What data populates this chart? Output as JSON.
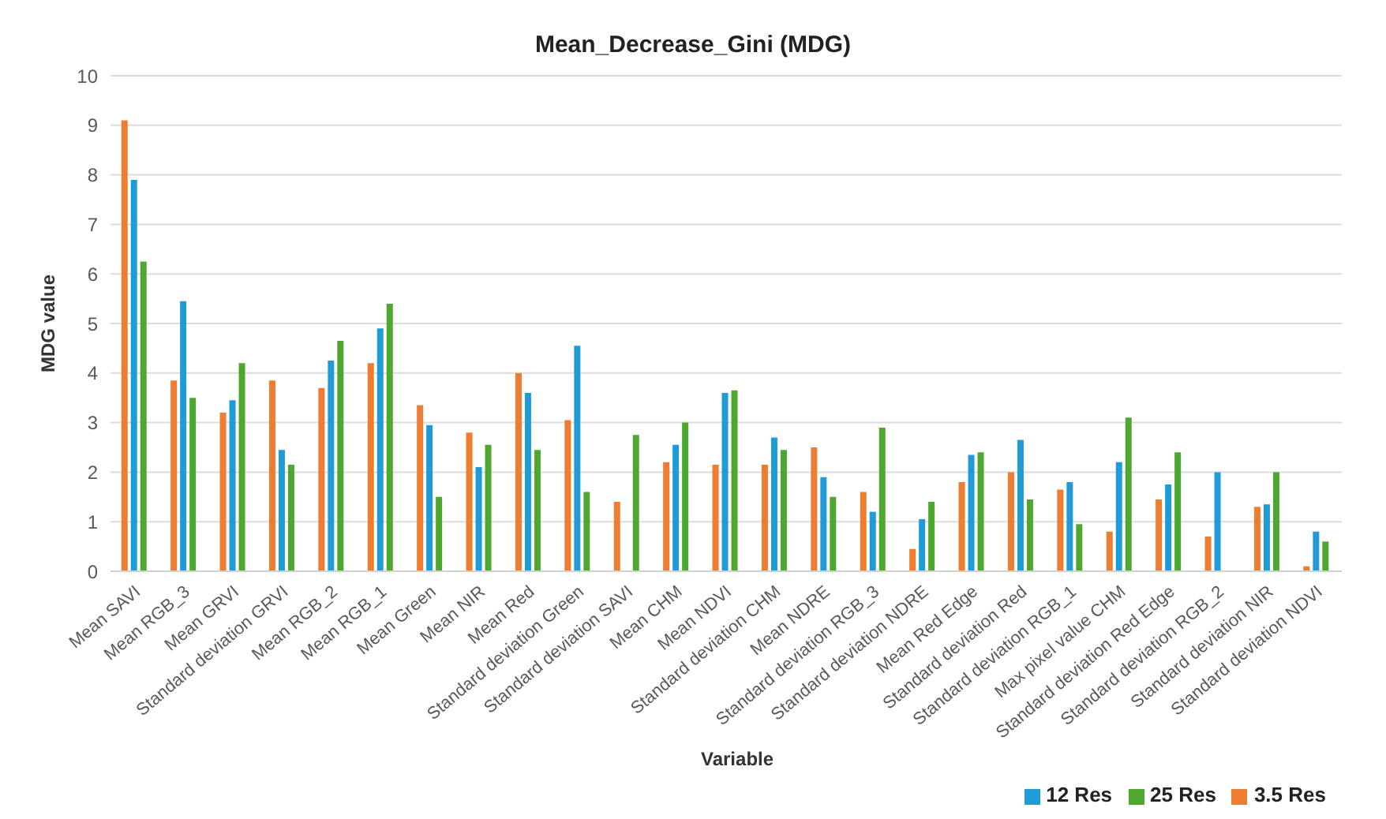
{
  "chart_data": {
    "type": "bar",
    "title": "Mean_Decrease_Gini (MDG)",
    "xlabel": "Variable",
    "ylabel": "MDG value",
    "categories": [
      "Mean SAVI",
      "Mean RGB_3",
      "Mean GRVI",
      "Standard deviation GRVI",
      "Mean RGB_2",
      "Mean RGB_1",
      "Mean Green",
      "Mean NIR",
      "Mean Red",
      "Standard deviation Green",
      "Standard deviation SAVI",
      "Mean CHM",
      "Mean NDVI",
      "Standard deviation CHM",
      "Mean NDRE",
      "Standard deviation RGB_3",
      "Standard deviation NDRE",
      "Mean Red Edge",
      "Standard deviation Red",
      "Standard deviation RGB_1",
      "Max pixel value CHM",
      "Standard deviation Red Edge",
      "Standard deviation RGB_2",
      "Standard deviation NIR",
      "Standard deviation NDVI"
    ],
    "series": [
      {
        "name": "3.5 Res",
        "color": "#ed7d31",
        "values": [
          9.1,
          3.85,
          3.2,
          3.85,
          3.7,
          4.2,
          3.35,
          2.8,
          4.0,
          3.05,
          1.4,
          2.2,
          2.15,
          2.15,
          2.5,
          1.6,
          0.45,
          1.8,
          2.0,
          1.65,
          0.8,
          1.45,
          0.7,
          1.3,
          0.1
        ]
      },
      {
        "name": "12 Res",
        "color": "#1f9bd7",
        "values": [
          7.9,
          5.45,
          3.45,
          2.45,
          4.25,
          4.9,
          2.95,
          2.1,
          3.6,
          4.55,
          null,
          2.55,
          3.6,
          2.7,
          1.9,
          1.2,
          1.05,
          2.35,
          2.65,
          1.8,
          2.2,
          1.75,
          2.0,
          1.35,
          0.8
        ]
      },
      {
        "name": "25 Res",
        "color": "#4ea72e",
        "values": [
          6.25,
          3.5,
          4.2,
          2.15,
          4.65,
          5.4,
          1.5,
          2.55,
          2.45,
          1.6,
          2.75,
          3.0,
          3.65,
          2.45,
          1.5,
          2.9,
          1.4,
          2.4,
          1.45,
          0.95,
          3.1,
          2.4,
          null,
          2.0,
          0.6
        ]
      }
    ],
    "ylim": [
      0,
      10
    ],
    "yticks": [
      0,
      1,
      2,
      3,
      4,
      5,
      6,
      7,
      8,
      9,
      10
    ],
    "grid": "y",
    "legend": "bottom right"
  }
}
